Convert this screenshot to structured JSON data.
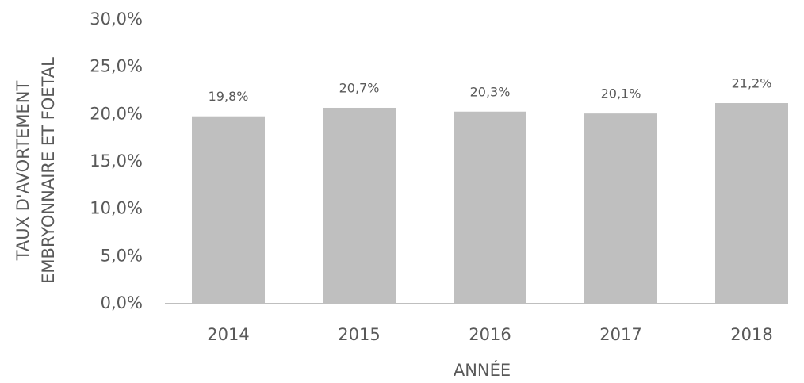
{
  "chart_data": {
    "type": "bar",
    "ylabel": [
      "TAUX D'AVORTEMENT",
      "EMBRYONNAIRE ET FOETAL"
    ],
    "xlabel": "ANNÉE",
    "categories": [
      "2014",
      "2015",
      "2016",
      "2017",
      "2018"
    ],
    "values": [
      19.8,
      20.7,
      20.3,
      20.1,
      21.2
    ],
    "value_labels": [
      "19,8%",
      "20,7%",
      "20,3%",
      "20,1%",
      "21,2%"
    ],
    "color": "#bfbfbf",
    "ylim": [
      0,
      30
    ],
    "yticks": [
      {
        "value": 0,
        "label": "0,0%"
      },
      {
        "value": 5,
        "label": "5,0%"
      },
      {
        "value": 10,
        "label": "10,0%"
      },
      {
        "value": 15,
        "label": "15,0%"
      },
      {
        "value": 20,
        "label": "20,0%"
      },
      {
        "value": 25,
        "label": "25,0%"
      },
      {
        "value": 30,
        "label": "30,0%"
      }
    ],
    "grid": false
  }
}
